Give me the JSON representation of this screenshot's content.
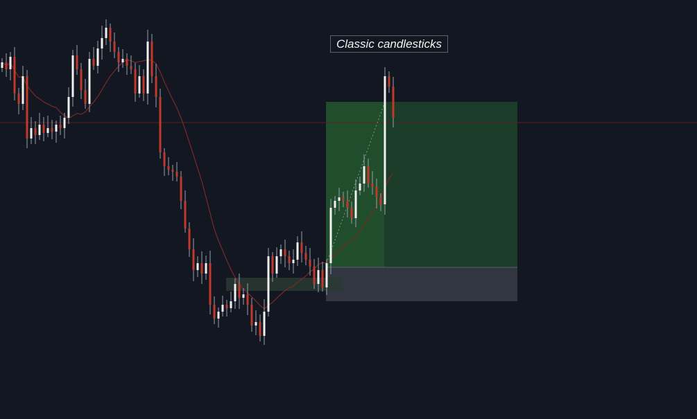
{
  "chart_data": {
    "type": "candlestick",
    "title": "",
    "xlabel": "",
    "ylabel": "",
    "grid": false,
    "annotation_label": "Classic candlesticks",
    "colors": {
      "background": "#131722",
      "up": "#f0f0f0",
      "down": "#c0392b",
      "wick": "#9aa0ab",
      "moving_average": "#7a2a26",
      "horizontal_line": "#5a2220",
      "target_zone": "#1f4a2c",
      "stop_zone": "#363a45",
      "small_zone": "#2a3a33"
    },
    "closes": [
      515,
      505,
      523,
      470,
      455,
      495,
      405,
      420,
      410,
      425,
      413,
      420,
      415,
      425,
      420,
      435,
      465,
      525,
      505,
      475,
      455,
      520,
      510,
      535,
      550,
      565,
      545,
      530,
      515,
      520,
      510,
      505,
      470,
      495,
      470,
      545,
      495,
      465,
      385,
      365,
      360,
      357,
      350,
      315,
      275,
      245,
      215,
      225,
      210,
      225,
      165,
      145,
      155,
      165,
      160,
      170,
      195,
      175,
      180,
      165,
      135,
      140,
      120,
      155,
      235,
      210,
      235,
      245,
      235,
      225,
      230,
      255,
      240,
      230,
      220,
      195,
      215,
      190,
      225,
      305,
      315,
      320,
      315,
      305,
      290,
      330,
      340,
      365,
      340,
      335,
      320,
      310,
      495,
      480,
      435
    ],
    "horizontal_line_price": 428,
    "position": {
      "type": "long",
      "start_index": 78,
      "end_index": 124,
      "filled_until_index": 92,
      "entry": 219,
      "target": 458,
      "stop": 170
    },
    "zone": {
      "start_index": 54,
      "end_index": 82,
      "top": 204,
      "bottom": 185
    }
  }
}
